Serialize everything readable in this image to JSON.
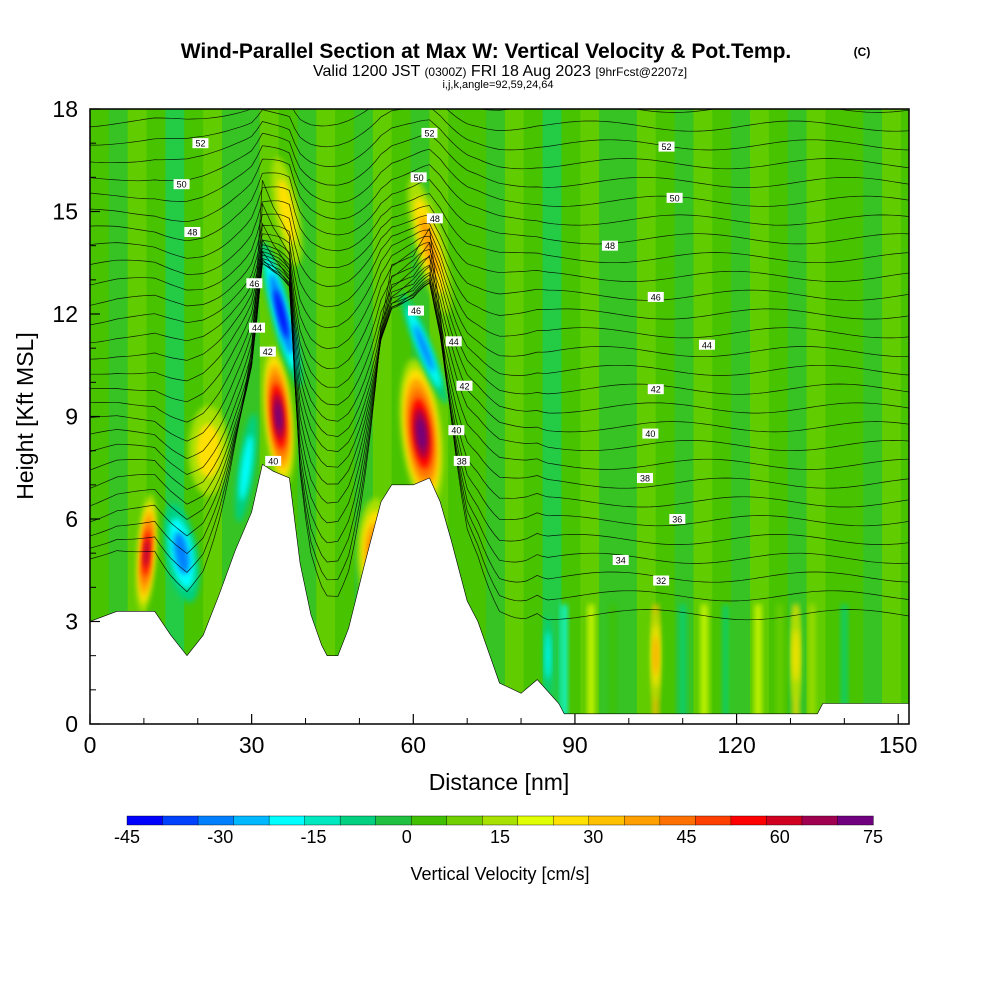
{
  "header": {
    "title": "Wind-Parallel Section at Max W: Vertical Velocity & Pot.Temp.",
    "copyright": "(C)",
    "valid_prefix": "Valid 1200 JST",
    "valid_utc": "(0300Z)",
    "valid_date": "FRI 18 Aug 2023",
    "forecast": "[9hrFcst@2207z]",
    "indices": "i,j,k,angle=92,59,24,64"
  },
  "chart_data": {
    "type": "heatmap",
    "title": "Wind-Parallel Section at Max W: Vertical Velocity & Pot.Temp.",
    "xlabel": "Distance [nm]",
    "ylabel": "Height [Kft MSL]",
    "xlim": [
      0,
      152
    ],
    "ylim": [
      0,
      18
    ],
    "xticks": [
      0,
      30,
      60,
      90,
      120,
      150
    ],
    "yticks": [
      0,
      3,
      6,
      9,
      12,
      15,
      18
    ],
    "colorbar": {
      "label": "Vertical Velocity [cm/s]",
      "ticks": [
        -45,
        -30,
        -15,
        0,
        15,
        30,
        45,
        60,
        75
      ],
      "colors": [
        "#0000ff",
        "#0040ff",
        "#0080ff",
        "#00b8ff",
        "#00ffff",
        "#00e8c0",
        "#00d080",
        "#20c040",
        "#40c000",
        "#70d000",
        "#a8e000",
        "#e0ff00",
        "#ffe000",
        "#ffc000",
        "#ffa000",
        "#ff7000",
        "#ff4000",
        "#ff0000",
        "#d00020",
        "#a00050",
        "#700080"
      ]
    },
    "terrain": [
      [
        0,
        3.0
      ],
      [
        5,
        3.3
      ],
      [
        12,
        3.3
      ],
      [
        15,
        2.6
      ],
      [
        18,
        2.0
      ],
      [
        21,
        2.6
      ],
      [
        24,
        3.8
      ],
      [
        27,
        5.1
      ],
      [
        30,
        6.2
      ],
      [
        32,
        7.6
      ],
      [
        34,
        7.4
      ],
      [
        37,
        7.2
      ],
      [
        39,
        4.7
      ],
      [
        41,
        3.2
      ],
      [
        43,
        2.3
      ],
      [
        44,
        2.0
      ],
      [
        46,
        2.0
      ],
      [
        48,
        2.8
      ],
      [
        51,
        4.7
      ],
      [
        54,
        6.5
      ],
      [
        56,
        7.0
      ],
      [
        60,
        7.0
      ],
      [
        63,
        7.2
      ],
      [
        65,
        6.5
      ],
      [
        67,
        5.4
      ],
      [
        70,
        3.6
      ],
      [
        72,
        3.0
      ],
      [
        76,
        1.2
      ],
      [
        80,
        0.9
      ],
      [
        83,
        1.3
      ],
      [
        87,
        0.6
      ],
      [
        88,
        0.3
      ],
      [
        100,
        0.3
      ],
      [
        110,
        0.3
      ],
      [
        120,
        0.3
      ],
      [
        135,
        0.3
      ],
      [
        136,
        0.6
      ],
      [
        152,
        0.6
      ]
    ],
    "updrafts": [
      {
        "x": 10.5,
        "y": 5.0,
        "w": 60,
        "note": "red core"
      },
      {
        "x": 35.0,
        "y": 9.0,
        "w": 70,
        "note": "dark red core"
      },
      {
        "x": 61.5,
        "y": 8.5,
        "w": 72,
        "note": "purple core"
      },
      {
        "x": 36.5,
        "y": 15.0,
        "w": 25
      },
      {
        "x": 63.0,
        "y": 14.0,
        "w": 30
      },
      {
        "x": 53.0,
        "y": 5.0,
        "w": 40
      },
      {
        "x": 22.0,
        "y": 8.0,
        "w": 20
      },
      {
        "x": 105.0,
        "y": 2.0,
        "w": 30
      },
      {
        "x": 131.0,
        "y": 2.0,
        "w": 25
      }
    ],
    "downdrafts": [
      {
        "x": 35.5,
        "y": 12.0,
        "w": -45
      },
      {
        "x": 62.0,
        "y": 11.0,
        "w": -30
      },
      {
        "x": 17.0,
        "y": 5.0,
        "w": -25
      },
      {
        "x": 29.0,
        "y": 7.5,
        "w": -20
      },
      {
        "x": 85.0,
        "y": 2.0,
        "w": -20
      }
    ],
    "theta_labels": [
      {
        "text": "52",
        "x": 20.5,
        "y": 17.0
      },
      {
        "text": "50",
        "x": 17.0,
        "y": 15.8
      },
      {
        "text": "48",
        "x": 19.0,
        "y": 14.4
      },
      {
        "text": "46",
        "x": 30.5,
        "y": 12.9
      },
      {
        "text": "44",
        "x": 31.0,
        "y": 11.6
      },
      {
        "text": "42",
        "x": 33.0,
        "y": 10.9
      },
      {
        "text": "40",
        "x": 34.0,
        "y": 7.7
      },
      {
        "text": "52",
        "x": 63.0,
        "y": 17.3
      },
      {
        "text": "50",
        "x": 61.0,
        "y": 16.0
      },
      {
        "text": "48",
        "x": 64.0,
        "y": 14.8
      },
      {
        "text": "46",
        "x": 60.5,
        "y": 12.1
      },
      {
        "text": "44",
        "x": 67.5,
        "y": 11.2
      },
      {
        "text": "42",
        "x": 69.5,
        "y": 9.9
      },
      {
        "text": "40",
        "x": 68.0,
        "y": 8.6
      },
      {
        "text": "38",
        "x": 69.0,
        "y": 7.7
      },
      {
        "text": "52",
        "x": 107.0,
        "y": 16.9
      },
      {
        "text": "50",
        "x": 108.5,
        "y": 15.4
      },
      {
        "text": "48",
        "x": 96.5,
        "y": 14.0
      },
      {
        "text": "46",
        "x": 105.0,
        "y": 12.5
      },
      {
        "text": "44",
        "x": 114.5,
        "y": 11.1
      },
      {
        "text": "42",
        "x": 105.0,
        "y": 9.8
      },
      {
        "text": "40",
        "x": 104.0,
        "y": 8.5
      },
      {
        "text": "38",
        "x": 103.0,
        "y": 7.2
      },
      {
        "text": "36",
        "x": 109.0,
        "y": 6.0
      },
      {
        "text": "34",
        "x": 98.5,
        "y": 4.8
      },
      {
        "text": "32",
        "x": 106.0,
        "y": 4.2
      }
    ]
  }
}
